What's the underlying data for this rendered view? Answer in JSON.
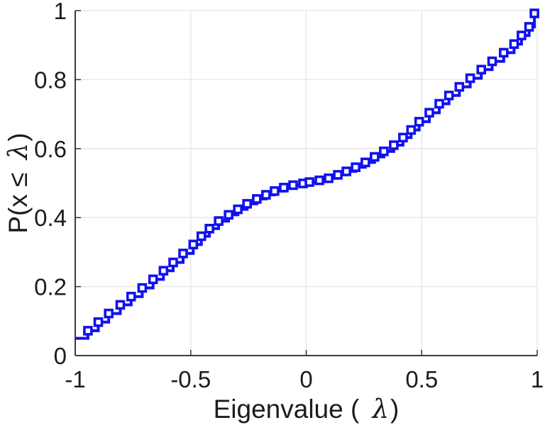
{
  "figure": {
    "background": "#ffffff"
  },
  "colors": {
    "line": "#1111ee",
    "marker_fill": "#ffffff",
    "axis": "#3d3d3d",
    "grid": "#e6e6e6",
    "text": "#1c1c1c"
  },
  "chart_data": {
    "type": "line",
    "subtype": "stairs-cdf",
    "title": "",
    "xlabel": "Eigenvalue ( λ)",
    "ylabel": "P(x ≤ λ)",
    "xlim": [
      -1,
      1
    ],
    "ylim": [
      0,
      1
    ],
    "grid": true,
    "legend_position": "none",
    "xticks": [
      -1,
      -0.5,
      0,
      0.5,
      1
    ],
    "xtick_labels": [
      "-1",
      "-0.5",
      "0",
      "0.5",
      "1"
    ],
    "yticks": [
      0,
      0.2,
      0.4,
      0.6,
      0.8,
      1
    ],
    "ytick_labels": [
      "0",
      "0.2",
      "0.4",
      "0.6",
      "0.8",
      "1"
    ],
    "series": [
      {
        "name": "empirical-cdf-of-eigenvalues",
        "step": true,
        "marker": "open-square",
        "line_width": 4,
        "start_point": [
          -1.0,
          0.05
        ],
        "end_x": 1.0,
        "x": [
          -0.945,
          -0.9,
          -0.855,
          -0.805,
          -0.758,
          -0.71,
          -0.663,
          -0.618,
          -0.576,
          -0.533,
          -0.489,
          -0.454,
          -0.419,
          -0.379,
          -0.336,
          -0.296,
          -0.256,
          -0.214,
          -0.174,
          -0.137,
          -0.097,
          -0.057,
          -0.014,
          0.014,
          0.057,
          0.097,
          0.137,
          0.174,
          0.214,
          0.256,
          0.296,
          0.336,
          0.379,
          0.419,
          0.454,
          0.489,
          0.533,
          0.576,
          0.618,
          0.663,
          0.71,
          0.758,
          0.805,
          0.855,
          0.9,
          0.932,
          0.965,
          0.988
        ],
        "y": [
          0.072,
          0.097,
          0.122,
          0.147,
          0.171,
          0.196,
          0.221,
          0.246,
          0.27,
          0.296,
          0.322,
          0.346,
          0.368,
          0.39,
          0.408,
          0.424,
          0.44,
          0.454,
          0.466,
          0.477,
          0.487,
          0.494,
          0.499,
          0.503,
          0.508,
          0.514,
          0.524,
          0.534,
          0.546,
          0.56,
          0.576,
          0.592,
          0.61,
          0.632,
          0.654,
          0.678,
          0.704,
          0.73,
          0.754,
          0.779,
          0.804,
          0.829,
          0.853,
          0.878,
          0.903,
          0.928,
          0.953,
          0.992
        ]
      }
    ]
  }
}
